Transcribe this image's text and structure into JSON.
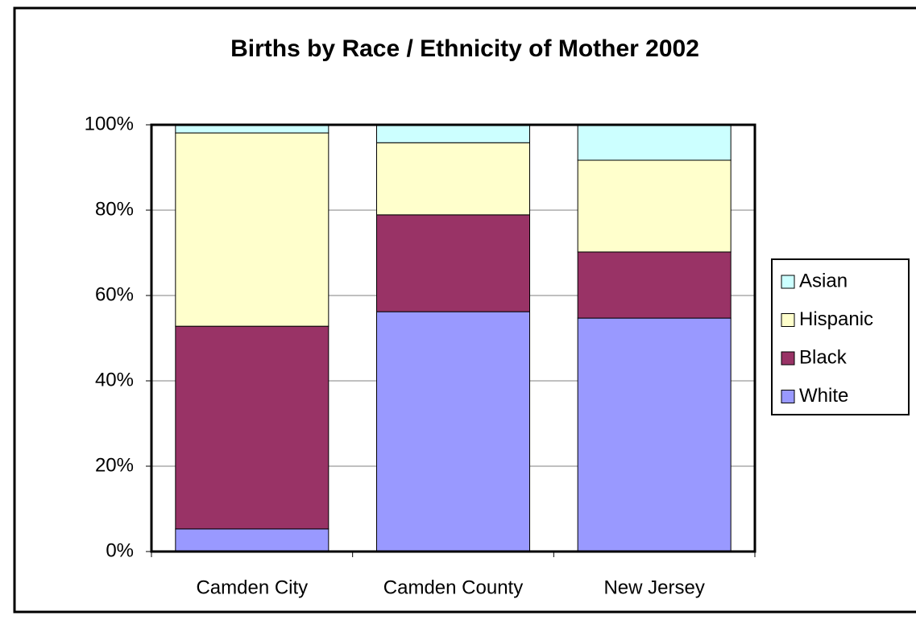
{
  "chart_data": {
    "type": "stacked_bar",
    "title": "Births by Race / Ethnicity of Mother 2002",
    "categories": [
      "Camden City",
      "Camden County",
      "New Jersey"
    ],
    "series": [
      {
        "name": "White",
        "color": "#9999ff",
        "values": [
          5.3,
          56.2,
          54.7
        ]
      },
      {
        "name": "Black",
        "color": "#993366",
        "values": [
          47.5,
          22.7,
          15.5
        ]
      },
      {
        "name": "Hispanic",
        "color": "#ffffcc",
        "values": [
          45.3,
          16.9,
          21.5
        ]
      },
      {
        "name": "Asian",
        "color": "#ccffff",
        "values": [
          1.9,
          4.2,
          8.3
        ]
      }
    ],
    "ylim": [
      0,
      100
    ],
    "yticks": [
      {
        "value": 0,
        "label": "0%"
      },
      {
        "value": 20,
        "label": "20%"
      },
      {
        "value": 40,
        "label": "40%"
      },
      {
        "value": 60,
        "label": "60%"
      },
      {
        "value": 80,
        "label": "80%"
      },
      {
        "value": 100,
        "label": "100%"
      }
    ],
    "grid": true,
    "legend": "right"
  }
}
